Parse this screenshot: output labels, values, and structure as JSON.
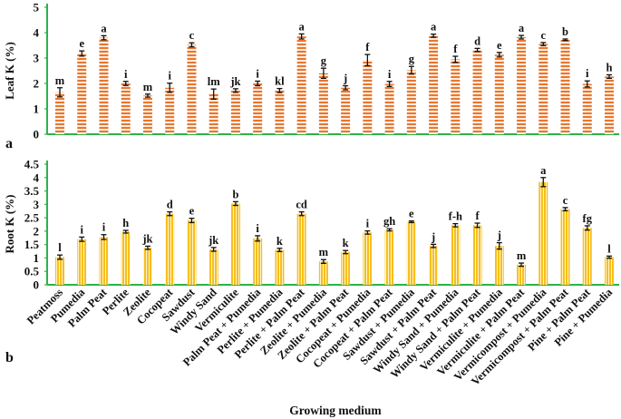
{
  "chart_data": [
    {
      "type": "bar",
      "panel_label": "a",
      "ylabel": "Leaf  K (%)",
      "ylim": [
        0,
        5
      ],
      "yticks": [
        "0",
        "1",
        "2",
        "3",
        "4",
        "5"
      ],
      "categories": [
        "Peatmoss",
        "Pumedia",
        "Palm Peat",
        "Perlite",
        "Zeolite",
        "Cocopeat",
        "Sawdust",
        "Windy Sand",
        "Vermiculite",
        "Palm Peat + Pumedia",
        "Perlite + Pumedia",
        "Perlite + Palm Peat",
        "Zeolite + Pumedia",
        "Zeolite + Palm Peat",
        "Cocopeat + Pumedia",
        "Cocopeat + Palm Peat",
        "Sawdust + Pumedia",
        "Sawdust + Palm Peat",
        "Windy Sand + Pumedia",
        "Windy Sand + Palm Peat",
        "Vermiculite + Pumedia",
        "Vermiculite + Palm Peat",
        "Vermicompost + Pumedia",
        "Vermicompost + Palm Peat",
        "Pine + Palm Peat",
        "Pine + Pumedia"
      ],
      "values": [
        1.65,
        3.18,
        3.8,
        2.0,
        1.52,
        1.83,
        3.52,
        1.58,
        1.72,
        2.0,
        1.72,
        3.85,
        2.4,
        1.83,
        2.92,
        1.98,
        2.52,
        3.88,
        2.95,
        3.32,
        3.13,
        3.82,
        3.55,
        3.72,
        1.98,
        2.27
      ],
      "errors": [
        0.18,
        0.1,
        0.08,
        0.08,
        0.06,
        0.18,
        0.08,
        0.2,
        0.07,
        0.09,
        0.08,
        0.1,
        0.2,
        0.08,
        0.22,
        0.1,
        0.15,
        0.06,
        0.12,
        0.06,
        0.09,
        0.07,
        0.06,
        0.03,
        0.12,
        0.07
      ],
      "letters": [
        "m",
        "e",
        "a",
        "i",
        "m",
        "i",
        "c",
        "lm",
        "jk",
        "i",
        "kl",
        "a",
        "g",
        "j",
        "f",
        "i",
        "g",
        "a",
        "f",
        "d",
        "e",
        "a",
        "c",
        "b",
        "i",
        "h"
      ]
    },
    {
      "type": "bar",
      "panel_label": "b",
      "ylabel": "Root K (%)",
      "xlabel": "Growing medium",
      "ylim": [
        0,
        4.5
      ],
      "yticks": [
        "0",
        "0.5",
        "1",
        "1.5",
        "2",
        "2.5",
        "3",
        "3.5",
        "4",
        "4.5"
      ],
      "categories": [
        "Peatmoss",
        "Pumedia",
        "Palm Peat",
        "Perlite",
        "Zeolite",
        "Cocopeat",
        "Sawdust",
        "Windy Sand",
        "Vermiculite",
        "Palm Peat + Pumedia",
        "Perlite + Pumedia",
        "Perlite + Palm Peat",
        "Zeolite + Pumedia",
        "Zeolite + Palm Peat",
        "Cocopeat + Pumedia",
        "Cocopeat + Palm Peat",
        "Sawdust + Pumedia",
        "Sawdust + Palm Peat",
        "Windy Sand + Pumedia",
        "Windy Sand + Palm Peat",
        "Vermiculite + Pumedia",
        "Vermiculite + Palm Peat",
        "Vermicompost + Pumedia",
        "Vermicompost + Palm Peat",
        "Pine + Palm Peat",
        "Pine + Pumedia"
      ],
      "values": [
        1.03,
        1.7,
        1.78,
        1.98,
        1.38,
        2.65,
        2.4,
        1.32,
        3.03,
        1.73,
        1.3,
        2.65,
        0.87,
        1.22,
        1.95,
        2.05,
        2.35,
        1.45,
        2.22,
        2.22,
        1.45,
        0.75,
        3.83,
        2.82,
        2.12,
        1.03
      ],
      "errors": [
        0.08,
        0.08,
        0.09,
        0.05,
        0.06,
        0.07,
        0.08,
        0.07,
        0.07,
        0.1,
        0.06,
        0.07,
        0.07,
        0.06,
        0.06,
        0.04,
        0.03,
        0.06,
        0.06,
        0.08,
        0.12,
        0.06,
        0.17,
        0.06,
        0.08,
        0.04
      ],
      "letters": [
        "l",
        "i",
        "i",
        "h",
        "jk",
        "d",
        "e",
        "jk",
        "b",
        "i",
        "k",
        "cd",
        "m",
        "k",
        "i",
        "gh",
        "e",
        "j",
        "f-h",
        "f",
        "j",
        "m",
        "a",
        "c",
        "fg",
        "l"
      ]
    }
  ]
}
